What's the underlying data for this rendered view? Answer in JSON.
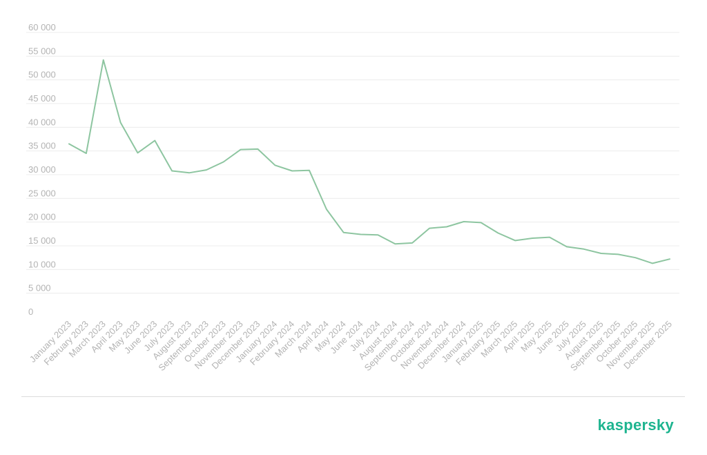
{
  "brand": {
    "name": "kaspersky",
    "color": "#1db48f"
  },
  "colors": {
    "line": "#8dc5a0",
    "grid": "#ececec",
    "tick_text": "#b3b3b3"
  },
  "chart_data": {
    "type": "line",
    "title": "",
    "xlabel": "",
    "ylabel": "",
    "ylim": [
      0,
      60000
    ],
    "yticks": [
      0,
      5000,
      10000,
      15000,
      20000,
      25000,
      30000,
      35000,
      40000,
      45000,
      50000,
      55000,
      60000
    ],
    "ytick_labels": [
      "0",
      "5 000",
      "10 000",
      "15 000",
      "20 000",
      "25 000",
      "30 000",
      "35 000",
      "40 000",
      "45 000",
      "50 000",
      "55 000",
      "60 000"
    ],
    "grid": true,
    "legend": false,
    "categories": [
      "January 2023",
      "February 2023",
      "March 2023",
      "April 2023",
      "May 2023",
      "June 2023",
      "July 2023",
      "August 2023",
      "September 2023",
      "October 2023",
      "November 2023",
      "December 2023",
      "January 2024",
      "February 2024",
      "March 2024",
      "April 2024",
      "May 2024",
      "June 2024",
      "July 2024",
      "August 2024",
      "September 2024",
      "October 2024",
      "November 2024",
      "December 2024",
      "January 2025",
      "February 2025",
      "March 2025",
      "April 2025",
      "May 2025",
      "June 2025",
      "July 2025",
      "August 2025",
      "September 2025",
      "October 2025",
      "November 2025",
      "December 2025"
    ],
    "series": [
      {
        "values": [
          36500,
          34500,
          54200,
          41000,
          34600,
          37200,
          30800,
          30400,
          31000,
          32700,
          35300,
          35400,
          32000,
          30800,
          30900,
          22700,
          17800,
          17400,
          17300,
          15400,
          15600,
          18700,
          19000,
          20100,
          19900,
          17700,
          16100,
          16600,
          16800,
          14800,
          14300,
          13400,
          13200,
          12500,
          11300,
          12200
        ]
      }
    ]
  }
}
